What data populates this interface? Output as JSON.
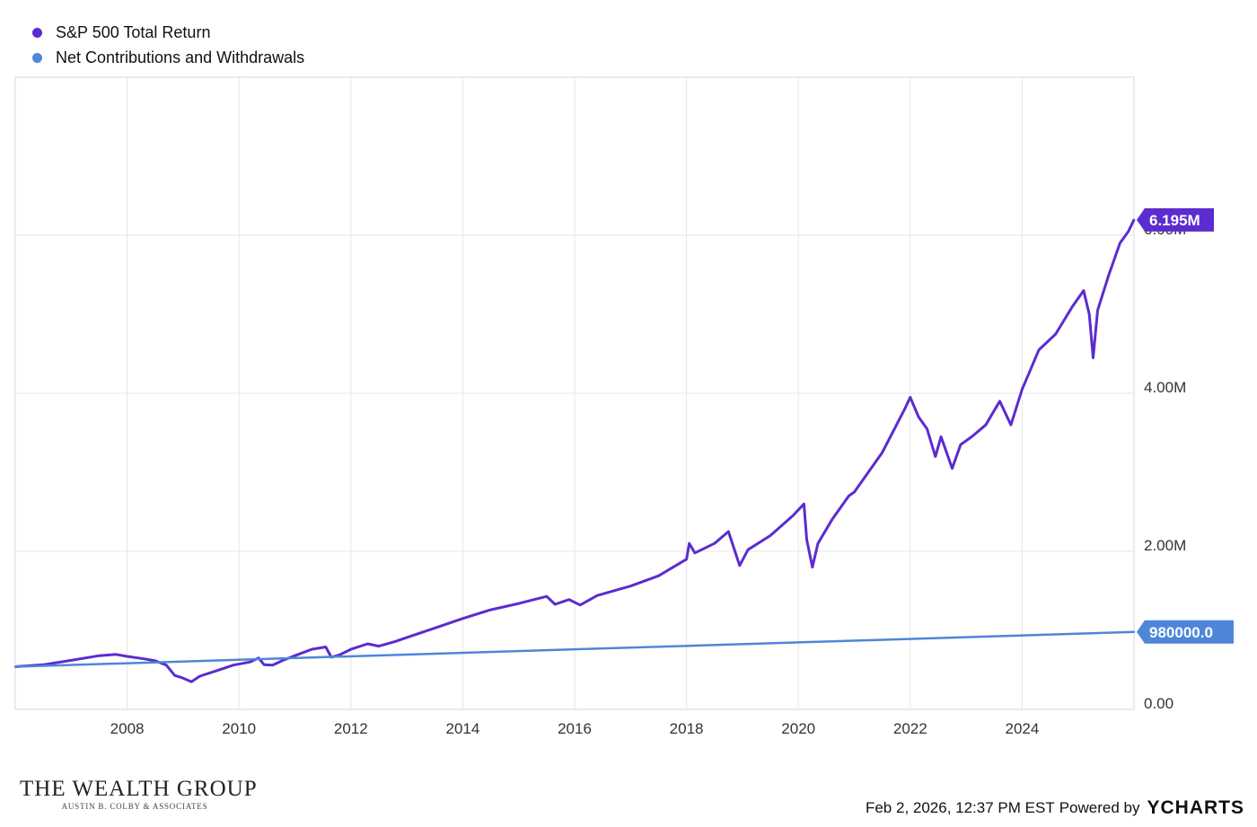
{
  "chart_data": {
    "type": "line",
    "series": [
      {
        "name": "S&P 500 Total Return",
        "color": "#5b2ccf",
        "end_label": "6.195M",
        "points": [
          [
            2006.0,
            540000
          ],
          [
            2006.5,
            565000
          ],
          [
            2007.0,
            620000
          ],
          [
            2007.5,
            680000
          ],
          [
            2007.8,
            695000
          ],
          [
            2008.0,
            670000
          ],
          [
            2008.3,
            640000
          ],
          [
            2008.5,
            615000
          ],
          [
            2008.7,
            560000
          ],
          [
            2008.85,
            430000
          ],
          [
            2009.0,
            395000
          ],
          [
            2009.15,
            350000
          ],
          [
            2009.3,
            420000
          ],
          [
            2009.6,
            490000
          ],
          [
            2009.9,
            560000
          ],
          [
            2010.2,
            600000
          ],
          [
            2010.35,
            650000
          ],
          [
            2010.45,
            565000
          ],
          [
            2010.6,
            560000
          ],
          [
            2010.8,
            625000
          ],
          [
            2011.0,
            680000
          ],
          [
            2011.3,
            760000
          ],
          [
            2011.55,
            790000
          ],
          [
            2011.65,
            660000
          ],
          [
            2011.8,
            690000
          ],
          [
            2012.0,
            760000
          ],
          [
            2012.3,
            830000
          ],
          [
            2012.5,
            800000
          ],
          [
            2012.8,
            860000
          ],
          [
            2013.0,
            910000
          ],
          [
            2013.5,
            1030000
          ],
          [
            2014.0,
            1150000
          ],
          [
            2014.5,
            1260000
          ],
          [
            2015.0,
            1340000
          ],
          [
            2015.5,
            1430000
          ],
          [
            2015.65,
            1330000
          ],
          [
            2015.9,
            1390000
          ],
          [
            2016.1,
            1320000
          ],
          [
            2016.4,
            1440000
          ],
          [
            2016.8,
            1520000
          ],
          [
            2017.0,
            1560000
          ],
          [
            2017.5,
            1690000
          ],
          [
            2018.0,
            1900000
          ],
          [
            2018.05,
            2100000
          ],
          [
            2018.15,
            1980000
          ],
          [
            2018.5,
            2100000
          ],
          [
            2018.75,
            2250000
          ],
          [
            2018.95,
            1820000
          ],
          [
            2019.1,
            2020000
          ],
          [
            2019.5,
            2200000
          ],
          [
            2019.9,
            2450000
          ],
          [
            2020.1,
            2600000
          ],
          [
            2020.15,
            2150000
          ],
          [
            2020.25,
            1800000
          ],
          [
            2020.35,
            2100000
          ],
          [
            2020.6,
            2400000
          ],
          [
            2020.9,
            2700000
          ],
          [
            2021.0,
            2750000
          ],
          [
            2021.5,
            3250000
          ],
          [
            2021.9,
            3800000
          ],
          [
            2022.0,
            3950000
          ],
          [
            2022.15,
            3700000
          ],
          [
            2022.3,
            3550000
          ],
          [
            2022.45,
            3200000
          ],
          [
            2022.55,
            3450000
          ],
          [
            2022.75,
            3050000
          ],
          [
            2022.9,
            3350000
          ],
          [
            2023.1,
            3450000
          ],
          [
            2023.35,
            3600000
          ],
          [
            2023.6,
            3900000
          ],
          [
            2023.8,
            3600000
          ],
          [
            2024.0,
            4050000
          ],
          [
            2024.3,
            4550000
          ],
          [
            2024.6,
            4750000
          ],
          [
            2024.9,
            5100000
          ],
          [
            2025.1,
            5300000
          ],
          [
            2025.2,
            5000000
          ],
          [
            2025.27,
            4450000
          ],
          [
            2025.35,
            5050000
          ],
          [
            2025.55,
            5500000
          ],
          [
            2025.75,
            5900000
          ],
          [
            2025.9,
            6050000
          ],
          [
            2026.0,
            6195000
          ]
        ]
      },
      {
        "name": "Net Contributions and Withdrawals",
        "color": "#4f86d8",
        "end_label": "980000.0",
        "points": [
          [
            2006.0,
            540000
          ],
          [
            2026.0,
            980000
          ]
        ]
      }
    ],
    "x_ticks": [
      "2008",
      "2010",
      "2012",
      "2014",
      "2016",
      "2018",
      "2020",
      "2022",
      "2024"
    ],
    "y_ticks": [
      "0.00",
      "2.00M",
      "4.00M",
      "6.00M"
    ],
    "xlim": [
      2006.0,
      2026.0
    ],
    "ylim": [
      0,
      8000000
    ],
    "grid": true,
    "legend_position": "top-left"
  },
  "legend": [
    "S&P 500 Total Return",
    "Net Contributions and Withdrawals"
  ],
  "branding": {
    "name": "THE WEALTH GROUP",
    "tagline": "AUSTIN B. COLBY & ASSOCIATES"
  },
  "footer": {
    "timestamp": "Feb 2, 2026, 12:37 PM EST",
    "powered_by": "Powered by",
    "logo": "YCHARTS"
  }
}
